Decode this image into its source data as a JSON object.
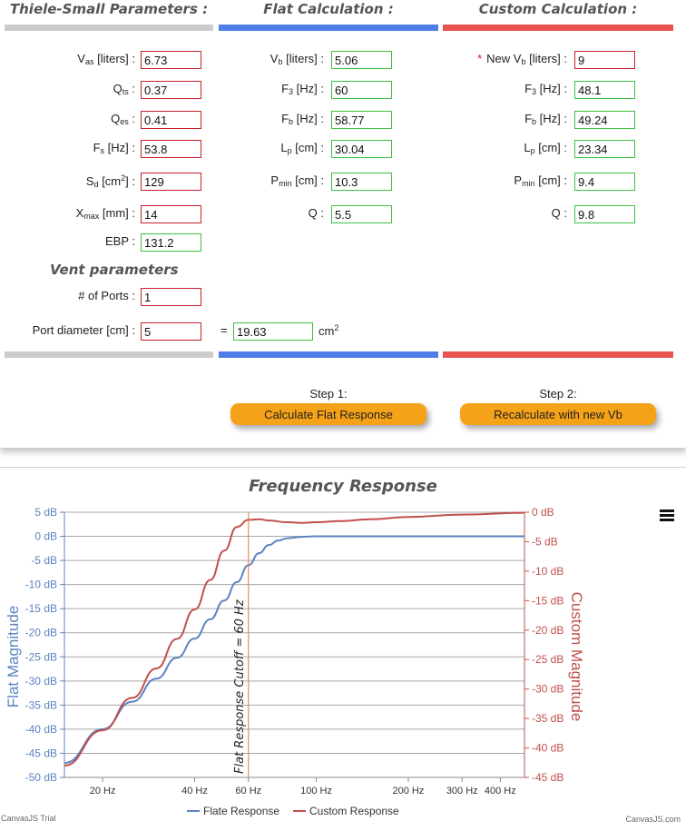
{
  "headers": {
    "thiele_small": "Thiele-Small Parameters :",
    "flat": "Flat Calculation :",
    "custom": "Custom Calculation :"
  },
  "ts_params": {
    "vas": {
      "label_pre": "V",
      "label_sub": "as",
      "label_post": " [liters] :",
      "value": "6.73"
    },
    "qts": {
      "label_pre": "Q",
      "label_sub": "ts",
      "label_post": " :",
      "value": "0.37"
    },
    "qes": {
      "label_pre": "Q",
      "label_sub": "es",
      "label_post": " :",
      "value": "0.41"
    },
    "fs": {
      "label_pre": "F",
      "label_sub": "s",
      "label_post": " [Hz] :",
      "value": "53.8"
    },
    "sd": {
      "label_pre": "S",
      "label_sub": "d",
      "label_post": " [cm",
      "label_sup": "2",
      "label_end": "] :",
      "value": "129"
    },
    "xmax": {
      "label_pre": "X",
      "label_sub": "max",
      "label_post": " [mm] :",
      "value": "14"
    },
    "ebp": {
      "label": "EBP :",
      "value": "131.2"
    }
  },
  "vent": {
    "title": "Vent parameters",
    "ports_label": "# of Ports :",
    "ports_value": "1",
    "diameter_label": "Port diameter [cm] :",
    "diameter_value": "5",
    "equals": "=",
    "area_value": "19.63",
    "area_unit": "cm",
    "area_unit_sup": "2"
  },
  "flat_calc": {
    "vb": {
      "label_pre": "V",
      "label_sub": "b",
      "label_post": " [liters] :",
      "value": "5.06"
    },
    "f3": {
      "label_pre": "F",
      "label_sub": "3",
      "label_post": " [Hz] :",
      "value": "60"
    },
    "fb": {
      "label_pre": "F",
      "label_sub": "b",
      "label_post": " [Hz] :",
      "value": "58.77"
    },
    "lp": {
      "label_pre": "L",
      "label_sub": "p",
      "label_post": " [cm] :",
      "value": "30.04"
    },
    "pmin": {
      "label_pre": "P",
      "label_sub": "min",
      "label_post": " [cm] :",
      "value": "10.3"
    },
    "q": {
      "label": "Q :",
      "value": "5.5"
    }
  },
  "custom_calc": {
    "required_mark": "*",
    "vb": {
      "label_pre": "New V",
      "label_sub": "b",
      "label_post": " [liters] :",
      "value": "9"
    },
    "f3": {
      "label_pre": "F",
      "label_sub": "3",
      "label_post": " [Hz] :",
      "value": "48.1"
    },
    "fb": {
      "label_pre": "F",
      "label_sub": "b",
      "label_post": " [Hz] :",
      "value": "49.24"
    },
    "lp": {
      "label_pre": "L",
      "label_sub": "p",
      "label_post": " [cm] :",
      "value": "23.34"
    },
    "pmin": {
      "label_pre": "P",
      "label_sub": "min",
      "label_post": " [cm] :",
      "value": "9.4"
    },
    "q": {
      "label": "Q :",
      "value": "9.8"
    }
  },
  "steps": {
    "step1_label": "Step 1:",
    "step1_button": "Calculate Flat Response",
    "step2_label": "Step 2:",
    "step2_button": "Recalculate with new Vb"
  },
  "colors": {
    "input_required_border": "#c8202a",
    "input_computed_border": "#3fbf3f",
    "button": "#f6a218",
    "bar_ts": "#cccccc",
    "bar_flat": "#4f7fe6",
    "bar_custom": "#e8544f",
    "flat_series": "#5b84c0",
    "custom_series": "#c0504d",
    "cutoff_line": "#e07a2a"
  },
  "chart_credit_left": "CanvasJS Trial",
  "chart_credit_right": "CanvasJS.com",
  "menu_icon": "hamburger-icon",
  "chart_data": {
    "type": "line",
    "title": "Frequency Response",
    "x_scale": "log",
    "xlim": [
      15,
      480
    ],
    "x_ticks": [
      20,
      40,
      60,
      100,
      200,
      300,
      400
    ],
    "x_tick_labels": [
      "20 Hz",
      "40 Hz",
      "60 Hz",
      "100 Hz",
      "200 Hz",
      "300 Hz",
      "400 Hz"
    ],
    "y_axis_left": {
      "label": "Flat Magnitude",
      "ylim": [
        -50,
        5
      ],
      "ticks": [
        5,
        0,
        -5,
        -10,
        -15,
        -20,
        -25,
        -30,
        -35,
        -40,
        -45,
        -50
      ],
      "tick_suffix": " dB"
    },
    "y_axis_right": {
      "label": "Custom Magnitude",
      "ylim": [
        -45,
        0
      ],
      "ticks": [
        0,
        -5,
        -10,
        -15,
        -20,
        -25,
        -30,
        -35,
        -40,
        -45
      ],
      "tick_suffix": " dB"
    },
    "grid": true,
    "legend_position": "bottom-center",
    "annotation": {
      "x": 60,
      "label": "Flat Response Cutoff = 60 Hz"
    },
    "series": [
      {
        "name": "Flate Response",
        "axis": "left",
        "x": [
          15,
          20,
          25,
          30,
          35,
          40,
          45,
          50,
          55,
          60,
          65,
          70,
          75,
          80,
          90,
          100,
          120,
          150,
          200,
          300,
          480
        ],
        "y": [
          -47,
          -40,
          -34.3,
          -29.5,
          -25.2,
          -21.2,
          -17.2,
          -13.3,
          -9.5,
          -6.0,
          -3.5,
          -1.8,
          -0.9,
          -0.4,
          -0.1,
          0,
          0,
          0,
          0,
          0,
          0
        ]
      },
      {
        "name": "Custom Response",
        "axis": "right",
        "x": [
          15,
          20,
          25,
          30,
          35,
          40,
          45,
          50,
          55,
          60,
          65,
          70,
          80,
          90,
          100,
          120,
          150,
          200,
          300,
          480
        ],
        "y": [
          -43,
          -37,
          -31.5,
          -26.5,
          -21.5,
          -16.5,
          -11.5,
          -6.5,
          -2.5,
          -1.3,
          -1.2,
          -1.4,
          -1.7,
          -1.8,
          -1.7,
          -1.5,
          -1.2,
          -0.8,
          -0.4,
          -0.1
        ]
      }
    ]
  }
}
